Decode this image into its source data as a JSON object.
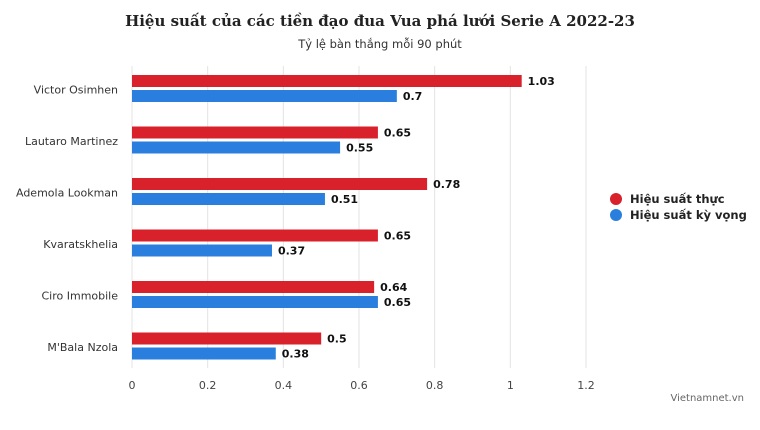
{
  "title": "Hiệu suất của các tiền đạo đua Vua phá lưới Serie A 2022-23",
  "subtitle": "Tỷ lệ bàn thắng mỗi 90 phút",
  "credit": "Vietnamnet.vn",
  "chart_data": {
    "type": "bar",
    "orientation": "horizontal",
    "title": "Hiệu suất của các tiền đạo đua Vua phá lưới Serie A 2022-23",
    "subtitle": "Tỷ lệ bàn thắng mỗi 90 phút",
    "categories": [
      "Victor Osimhen",
      "Lautaro Martinez",
      "Ademola Lookman",
      "Kvaratskhelia",
      "Ciro Immobile",
      "M'Bala Nzola"
    ],
    "series": [
      {
        "name": "Hiệu suất thực",
        "color": "#d9212c",
        "values": [
          1.03,
          0.65,
          0.78,
          0.65,
          0.64,
          0.5
        ]
      },
      {
        "name": "Hiệu suất kỳ vọng",
        "color": "#2a7fde",
        "values": [
          0.7,
          0.55,
          0.51,
          0.37,
          0.65,
          0.38
        ]
      }
    ],
    "x_ticks": [
      "0",
      "0.2",
      "0.4",
      "0.6",
      "0.8",
      "1",
      "1.2"
    ],
    "xlim": [
      0,
      1.2
    ],
    "grid": true,
    "legend_position": "right"
  }
}
